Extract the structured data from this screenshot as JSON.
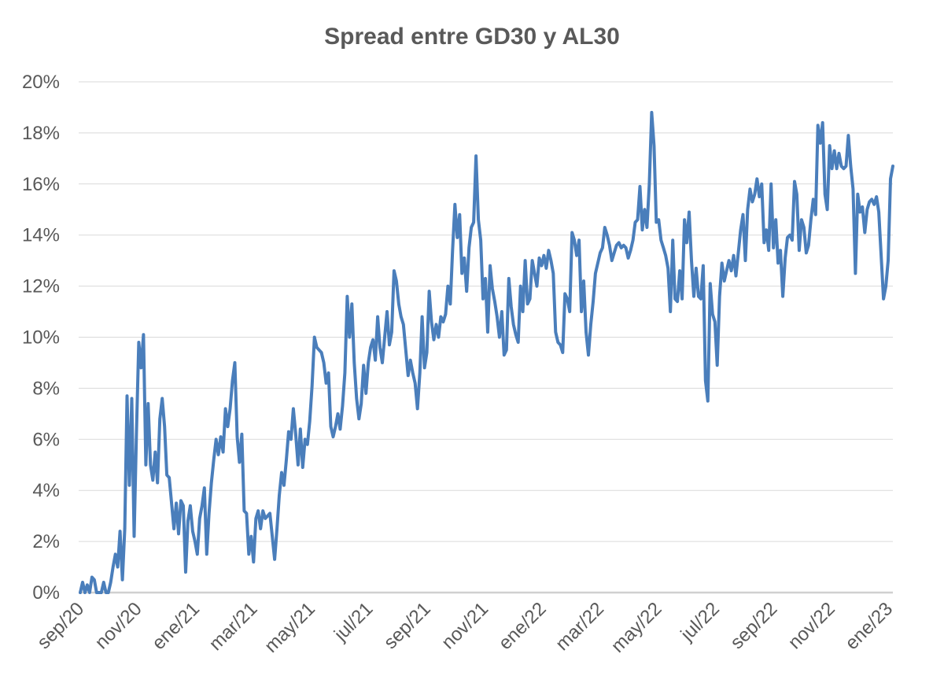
{
  "chart_data": {
    "type": "line",
    "title": "Spread entre GD30 y AL30",
    "xlabel": "",
    "ylabel": "",
    "ylim": [
      0,
      20
    ],
    "y_ticks": [
      "0%",
      "2%",
      "4%",
      "6%",
      "8%",
      "10%",
      "12%",
      "14%",
      "16%",
      "18%",
      "20%"
    ],
    "x_ticks": [
      "sep/20",
      "nov/20",
      "ene/21",
      "mar/21",
      "may/21",
      "jul/21",
      "sep/21",
      "nov/21",
      "ene/22",
      "mar/22",
      "may/22",
      "jul/22",
      "sep/22",
      "nov/22",
      "ene/23"
    ],
    "grid": true,
    "line_color": "#4a7ebb",
    "series": [
      {
        "values": [
          0.0,
          0.4,
          0.0,
          0.3,
          0.0,
          0.6,
          0.5,
          0.0,
          0.0,
          0.0,
          0.4,
          0.0,
          0.0,
          0.4,
          1.0,
          1.5,
          1.0,
          2.4,
          0.5,
          2.5,
          7.7,
          4.2,
          7.6,
          2.2,
          6.2,
          9.8,
          8.8,
          10.1,
          5.0,
          7.4,
          5.0,
          4.4,
          5.5,
          4.3,
          6.8,
          7.6,
          6.5,
          4.6,
          4.5,
          3.5,
          2.5,
          3.5,
          2.3,
          3.6,
          3.4,
          0.8,
          2.8,
          3.4,
          2.4,
          2.0,
          1.5,
          2.9,
          3.4,
          4.1,
          1.5,
          3.1,
          4.3,
          5.2,
          6.0,
          5.4,
          6.1,
          5.5,
          7.2,
          6.5,
          7.2,
          8.3,
          9.0,
          6.1,
          5.1,
          6.2,
          3.2,
          3.1,
          1.5,
          2.2,
          1.2,
          2.9,
          3.2,
          2.5,
          3.2,
          2.9,
          3.0,
          3.1,
          2.2,
          1.3,
          2.5,
          3.8,
          4.7,
          4.2,
          5.2,
          6.3,
          6.0,
          7.2,
          6.2,
          5.0,
          6.4,
          4.9,
          6.0,
          5.8,
          6.7,
          8.1,
          10.0,
          9.6,
          9.5,
          9.4,
          9.0,
          8.2,
          8.6,
          6.5,
          6.1,
          6.5,
          7.0,
          6.4,
          7.3,
          8.6,
          11.6,
          10.0,
          11.3,
          9.0,
          7.6,
          6.8,
          7.4,
          8.9,
          7.8,
          9.0,
          9.6,
          9.9,
          9.1,
          10.8,
          9.6,
          9.0,
          10.0,
          11.0,
          9.7,
          10.2,
          12.6,
          12.2,
          11.3,
          10.8,
          10.5,
          9.5,
          8.5,
          9.1,
          8.6,
          8.2,
          7.2,
          8.6,
          10.8,
          8.8,
          9.4,
          11.8,
          10.6,
          9.9,
          10.5,
          10.0,
          10.8,
          10.6,
          10.9,
          12.0,
          11.3,
          13.4,
          15.2,
          13.9,
          14.8,
          12.5,
          13.1,
          11.8,
          13.5,
          14.3,
          14.5,
          17.1,
          14.6,
          13.8,
          11.5,
          12.3,
          10.2,
          12.8,
          11.9,
          11.4,
          10.8,
          10.0,
          11.0,
          9.3,
          9.5,
          12.3,
          11.2,
          10.5,
          10.1,
          9.8,
          12.0,
          11.0,
          13.0,
          11.3,
          11.5,
          13.0,
          12.5,
          12.0,
          13.1,
          12.8,
          13.2,
          12.7,
          13.4,
          13.0,
          12.5,
          10.2,
          9.8,
          9.7,
          9.4,
          11.7,
          11.5,
          11.0,
          14.1,
          13.8,
          13.2,
          13.8,
          11.0,
          12.2,
          10.2,
          9.3,
          10.5,
          11.4,
          12.5,
          12.9,
          13.3,
          13.5,
          14.3,
          14.0,
          13.6,
          13.0,
          13.3,
          13.6,
          13.7,
          13.5,
          13.6,
          13.5,
          13.1,
          13.4,
          13.8,
          14.5,
          14.6,
          15.9,
          14.2,
          15.0,
          14.3,
          16.0,
          18.8,
          17.5,
          14.5,
          14.6,
          13.8,
          13.5,
          13.2,
          12.7,
          11.0,
          13.8,
          11.5,
          11.4,
          12.6,
          11.5,
          14.6,
          13.7,
          14.9,
          13.0,
          11.6,
          12.7,
          11.6,
          11.5,
          12.8,
          8.3,
          7.5,
          12.1,
          10.9,
          10.6,
          8.9,
          11.6,
          12.9,
          12.2,
          12.6,
          13.0,
          12.6,
          13.2,
          12.4,
          13.3,
          14.2,
          14.8,
          13.0,
          15.0,
          15.8,
          15.3,
          15.6,
          16.2,
          15.5,
          16.0,
          13.7,
          14.2,
          13.4,
          16.0,
          13.5,
          14.6,
          12.9,
          13.4,
          11.6,
          13.1,
          13.9,
          14.0,
          13.8,
          16.1,
          15.6,
          13.4,
          14.6,
          14.3,
          13.3,
          13.6,
          14.6,
          15.4,
          14.8,
          18.3,
          17.6,
          18.4,
          15.6,
          15.0,
          17.5,
          16.6,
          17.3,
          16.6,
          17.2,
          16.7,
          16.6,
          16.7,
          17.9,
          16.7,
          15.8,
          12.5,
          15.6,
          14.9,
          15.1,
          14.1,
          15.0,
          15.3,
          15.4,
          15.2,
          15.5,
          14.9,
          13.2,
          11.5,
          12.0,
          13.0,
          16.2,
          16.7
        ]
      }
    ]
  }
}
